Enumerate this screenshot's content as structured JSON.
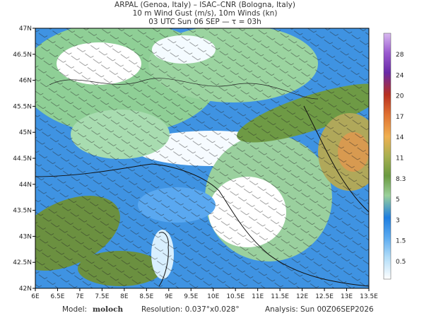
{
  "header": {
    "line1": "ARPAL (Genoa, Italy)  –  ISAC–CNR (Bologna, Italy)",
    "line2": "10 m Wind Gust (m/s), 10m Winds (kn)",
    "line3": "03 UTC Sun 06 SEP  —  τ = 03h"
  },
  "map": {
    "lat_labels": [
      "47N",
      "46.5N",
      "46N",
      "45.5N",
      "45N",
      "44.5N",
      "44N",
      "43.5N",
      "43N",
      "42.5N",
      "42N"
    ],
    "lon_labels": [
      "6E",
      "6.5E",
      "7E",
      "7.5E",
      "8E",
      "8.5E",
      "9E",
      "9.5E",
      "10E",
      "10.5E",
      "11E",
      "11.5E",
      "12E",
      "12.5E",
      "13E",
      "13.5E"
    ]
  },
  "colorbar": {
    "labels": [
      "28",
      "24",
      "20",
      "17",
      "14",
      "11",
      "8.3",
      "5",
      "3",
      "1.5",
      "0.5"
    ]
  },
  "footer": {
    "model_label": "Model:",
    "model": "moloch",
    "resolution": "Resolution: 0.037°x0.028°",
    "analysis": "Analysis: Sun 00Z06SEP2026"
  }
}
